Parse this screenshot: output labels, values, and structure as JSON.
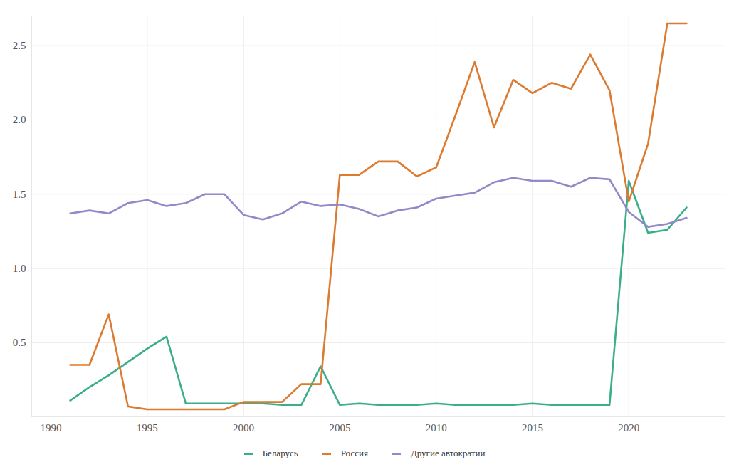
{
  "chart_data": {
    "type": "line",
    "x": [
      1991,
      1992,
      1993,
      1994,
      1995,
      1996,
      1997,
      1998,
      1999,
      2000,
      2001,
      2002,
      2003,
      2004,
      2005,
      2006,
      2007,
      2008,
      2009,
      2010,
      2011,
      2012,
      2013,
      2014,
      2015,
      2016,
      2017,
      2018,
      2019,
      2020,
      2021,
      2022,
      2023
    ],
    "series": [
      {
        "name": "Беларусь",
        "color": "#3aae8a",
        "values": [
          0.11,
          0.2,
          0.28,
          0.37,
          0.46,
          0.54,
          0.09,
          0.09,
          0.09,
          0.09,
          0.09,
          0.08,
          0.08,
          0.34,
          0.08,
          0.09,
          0.08,
          0.08,
          0.08,
          0.09,
          0.08,
          0.08,
          0.08,
          0.08,
          0.09,
          0.08,
          0.08,
          0.08,
          0.08,
          1.59,
          1.24,
          1.26,
          1.41
        ]
      },
      {
        "name": "Россия",
        "color": "#dc7a30",
        "values": [
          0.35,
          0.35,
          0.69,
          0.07,
          0.05,
          0.05,
          0.05,
          0.05,
          0.05,
          0.1,
          0.1,
          0.1,
          0.22,
          0.22,
          1.63,
          1.63,
          1.72,
          1.72,
          1.62,
          1.68,
          2.03,
          2.39,
          1.95,
          2.27,
          2.18,
          2.25,
          2.21,
          2.44,
          2.2,
          1.45,
          1.84,
          2.65,
          2.65
        ]
      },
      {
        "name": "Другие автократии",
        "color": "#9189c8",
        "values": [
          1.37,
          1.39,
          1.37,
          1.44,
          1.46,
          1.42,
          1.44,
          1.5,
          1.5,
          1.36,
          1.33,
          1.37,
          1.45,
          1.42,
          1.43,
          1.4,
          1.35,
          1.39,
          1.41,
          1.47,
          1.49,
          1.51,
          1.58,
          1.61,
          1.59,
          1.59,
          1.55,
          1.61,
          1.6,
          1.38,
          1.28,
          1.3,
          1.34
        ]
      }
    ],
    "xlim": [
      1989,
      2025
    ],
    "xticks": [
      1990,
      1995,
      2000,
      2005,
      2010,
      2015,
      2020
    ],
    "ylim": [
      0,
      2.7
    ],
    "yticks": [
      0.5,
      {
        "value": 1,
        "label": "1.0"
      },
      1.5,
      {
        "value": 2,
        "label": "2.0"
      },
      2.5
    ],
    "grid": true,
    "legend": "bottom"
  }
}
